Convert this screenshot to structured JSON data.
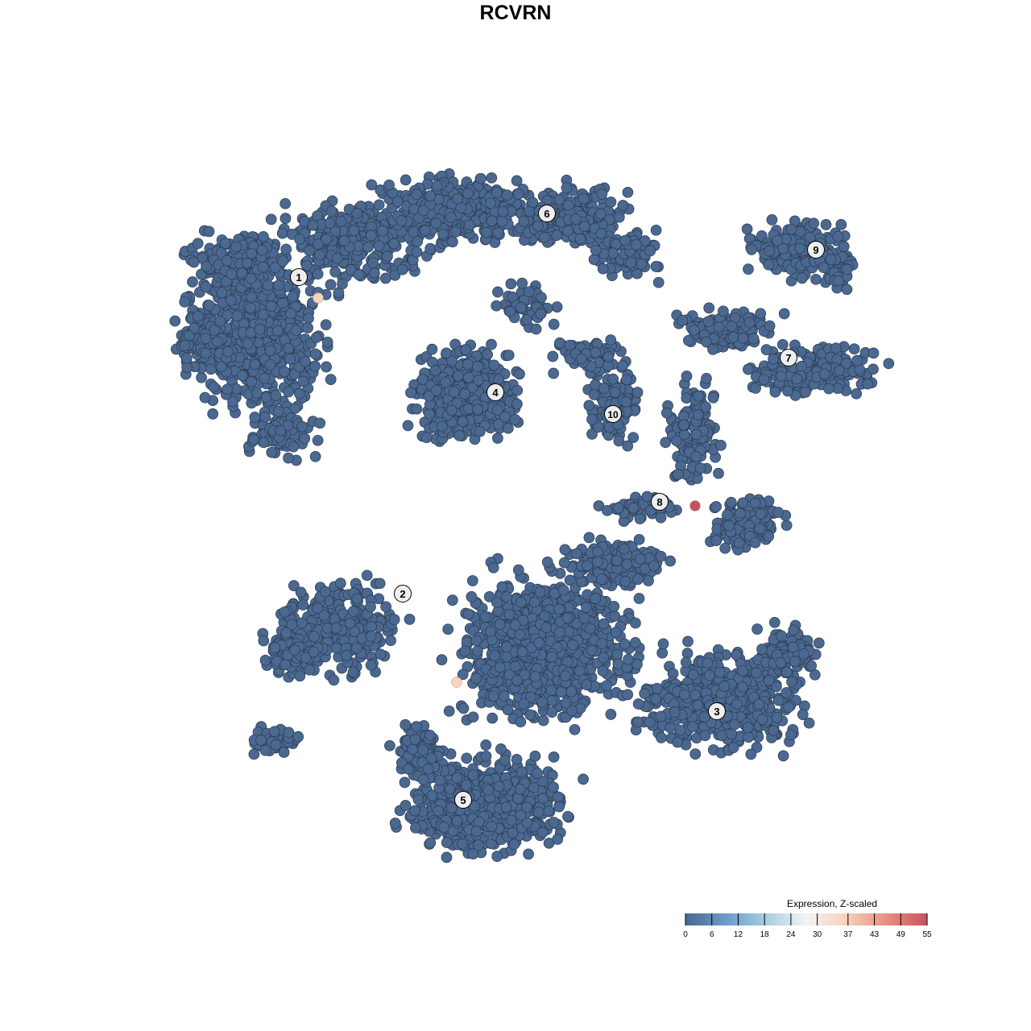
{
  "chart_data": {
    "type": "scatter",
    "title": "RCVRN",
    "xlabel": "",
    "ylabel": "",
    "axes_visible": false,
    "grid": false,
    "point_color_default": "#4a6890",
    "clusters": [
      "1",
      "2",
      "3",
      "4",
      "5",
      "6",
      "7",
      "8",
      "9",
      "10"
    ],
    "highlighted_cells": [
      {
        "cluster": "1",
        "expression": 36
      },
      {
        "cluster": "5",
        "expression": 36
      },
      {
        "cluster": "8",
        "expression": 55
      }
    ],
    "colorbar": {
      "title": "Expression, Z-scaled",
      "ticks": [
        "0",
        "6",
        "12",
        "18",
        "24",
        "30",
        "37",
        "43",
        "49",
        "55"
      ],
      "range": [
        0,
        55
      ],
      "colors": [
        "#4a6890",
        "#6a9cc8",
        "#a6cde2",
        "#f2f4f7",
        "#f8d0bc",
        "#e88f80",
        "#c6525f"
      ],
      "placement": "bottom-right"
    }
  }
}
